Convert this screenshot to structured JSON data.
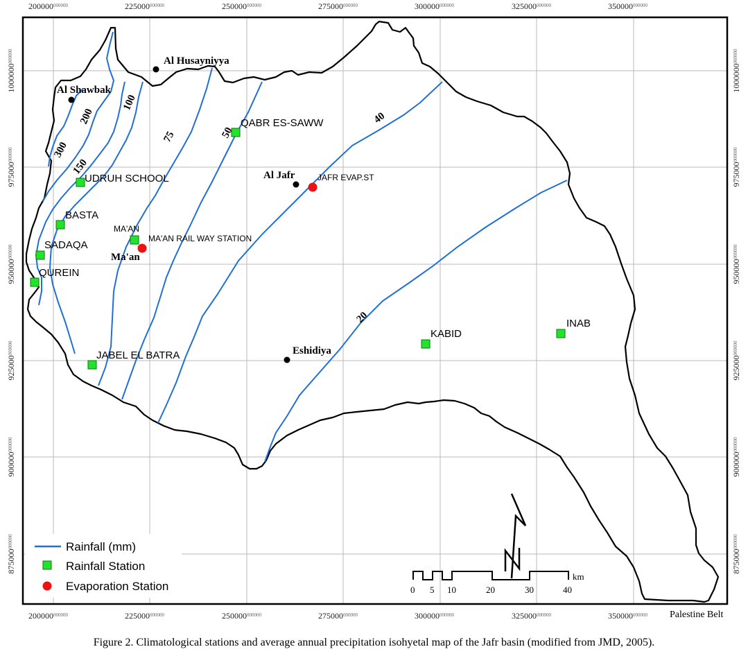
{
  "figure": {
    "caption": "Figure 2. Climatological stations and average annual precipitation isohyetal map of the Jafr basin (modified from JMD, 2005).",
    "corner_note": "Palestine Belt"
  },
  "axes": {
    "x_ticks": [
      {
        "value": "200000",
        "suffix": "000000"
      },
      {
        "value": "225000",
        "suffix": "000000"
      },
      {
        "value": "250000",
        "suffix": "000000"
      },
      {
        "value": "275000",
        "suffix": "000000"
      },
      {
        "value": "300000",
        "suffix": "000000"
      },
      {
        "value": "325000",
        "suffix": "000000"
      },
      {
        "value": "350000",
        "suffix": "000000"
      }
    ],
    "y_ticks": [
      {
        "value": "1000000",
        "suffix": "000000"
      },
      {
        "value": "975000",
        "suffix": "000000"
      },
      {
        "value": "950000",
        "suffix": "000000"
      },
      {
        "value": "925000",
        "suffix": "000000"
      },
      {
        "value": "900000",
        "suffix": "000000"
      },
      {
        "value": "875000",
        "suffix": "000000"
      }
    ]
  },
  "isohyets": {
    "labels": [
      "300",
      "200",
      "150",
      "100",
      "75",
      "50",
      "40",
      "20"
    ],
    "color": "#1f6fd6"
  },
  "towns": [
    "Al Husayniyya",
    "Al Shawbak",
    "Al Jafr",
    "Ma'an",
    "Eshidiya"
  ],
  "rainfall_stations": [
    "QABR ES-SAWW",
    "UDRUH SCHOOL",
    "BASTA",
    "MA'AN",
    "SADAQA",
    "QUREIN",
    "JABEL EL BATRA",
    "KABID",
    "INAB"
  ],
  "evaporation_stations": [
    "JAFR EVAP.ST",
    "MA'AN RAIL WAY STATION"
  ],
  "legend": {
    "rainfall_line": "Rainfall (mm)",
    "rainfall_station": "Rainfall Station",
    "evaporation_station": "Evaporation Station"
  },
  "scale_bar": {
    "ticks": [
      "0",
      "5",
      "10",
      "20",
      "30",
      "40"
    ],
    "unit": "km"
  },
  "colors": {
    "isohyet": "#1f6fd6",
    "rainfall_station": "#22e22a",
    "evaporation_station": "#ee1111",
    "grid": "#b8b8b8"
  }
}
